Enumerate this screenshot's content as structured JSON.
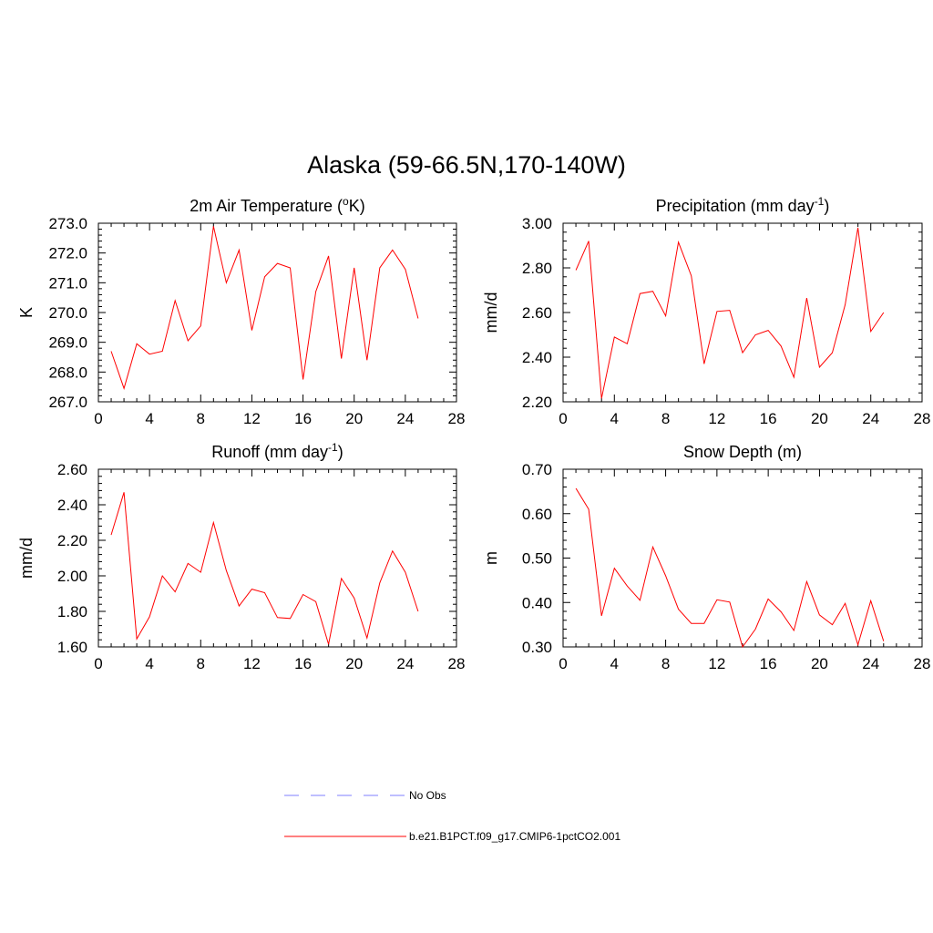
{
  "title": "Alaska (59-66.5N,170-140W)",
  "legend": {
    "entries": [
      {
        "label": "No Obs",
        "color": "#9999ff",
        "style": "dashed"
      },
      {
        "label": "b.e21.B1PCT.f09_g17.CMIP6-1pctCO2.001",
        "color": "#ff0000",
        "style": "solid"
      }
    ]
  },
  "chart_data": [
    {
      "type": "line",
      "title": "2m Air Temperature (",
      "title_sup": "o",
      "title_after": "K)",
      "xlabel": "",
      "ylabel": "K",
      "xlim": [
        0,
        28
      ],
      "ylim": [
        267.0,
        273.0
      ],
      "xticks": [
        0,
        4,
        8,
        12,
        16,
        20,
        24,
        28
      ],
      "yticks": [
        "267.0",
        "268.0",
        "269.0",
        "270.0",
        "271.0",
        "272.0",
        "273.0"
      ],
      "grid": false,
      "series": [
        {
          "color": "#ff0000",
          "x": [
            1,
            2,
            3,
            4,
            5,
            6,
            7,
            8,
            9,
            10,
            11,
            12,
            13,
            14,
            15,
            16,
            17,
            18,
            19,
            20,
            21,
            22,
            23,
            24,
            25
          ],
          "y": [
            268.7,
            267.45,
            268.95,
            268.6,
            268.7,
            270.4,
            269.05,
            269.55,
            272.9,
            271.0,
            272.1,
            269.4,
            271.2,
            271.65,
            271.5,
            267.75,
            270.7,
            271.9,
            268.45,
            271.5,
            268.4,
            271.5,
            272.1,
            271.45,
            269.8
          ]
        }
      ]
    },
    {
      "type": "line",
      "title": "Precipitation (mm day",
      "title_sup": "-1",
      "title_after": ")",
      "xlabel": "",
      "ylabel": "mm/d",
      "xlim": [
        0,
        28
      ],
      "ylim": [
        2.2,
        3.0
      ],
      "xticks": [
        0,
        4,
        8,
        12,
        16,
        20,
        24,
        28
      ],
      "yticks": [
        "2.20",
        "2.40",
        "2.60",
        "2.80",
        "3.00"
      ],
      "grid": false,
      "series": [
        {
          "color": "#ff0000",
          "x": [
            1,
            2,
            3,
            4,
            5,
            6,
            7,
            8,
            9,
            10,
            11,
            12,
            13,
            14,
            15,
            16,
            17,
            18,
            19,
            20,
            21,
            22,
            23,
            24,
            25
          ],
          "y": [
            2.79,
            2.92,
            2.215,
            2.49,
            2.46,
            2.685,
            2.695,
            2.585,
            2.915,
            2.765,
            2.37,
            2.605,
            2.61,
            2.42,
            2.5,
            2.52,
            2.45,
            2.31,
            2.665,
            2.355,
            2.42,
            2.635,
            2.98,
            2.515,
            2.6
          ]
        }
      ]
    },
    {
      "type": "line",
      "title": "Runoff (mm day",
      "title_sup": "-1",
      "title_after": ")",
      "xlabel": "",
      "ylabel": "mm/d",
      "xlim": [
        0,
        28
      ],
      "ylim": [
        1.6,
        2.6
      ],
      "xticks": [
        0,
        4,
        8,
        12,
        16,
        20,
        24,
        28
      ],
      "yticks": [
        "1.60",
        "1.80",
        "2.00",
        "2.20",
        "2.40",
        "2.60"
      ],
      "grid": false,
      "series": [
        {
          "color": "#ff0000",
          "x": [
            1,
            2,
            3,
            4,
            5,
            6,
            7,
            8,
            9,
            10,
            11,
            12,
            13,
            14,
            15,
            16,
            17,
            18,
            19,
            20,
            21,
            22,
            23,
            24,
            25
          ],
          "y": [
            2.23,
            2.47,
            1.645,
            1.77,
            2.0,
            1.91,
            2.07,
            2.02,
            2.3,
            2.03,
            1.83,
            1.925,
            1.905,
            1.765,
            1.76,
            1.895,
            1.855,
            1.615,
            1.985,
            1.875,
            1.65,
            1.96,
            2.14,
            2.02,
            1.8
          ]
        }
      ]
    },
    {
      "type": "line",
      "title": "Snow Depth (m)",
      "title_sup": "",
      "title_after": "",
      "xlabel": "",
      "ylabel": "m",
      "xlim": [
        0,
        28
      ],
      "ylim": [
        0.3,
        0.7
      ],
      "xticks": [
        0,
        4,
        8,
        12,
        16,
        20,
        24,
        28
      ],
      "yticks": [
        "0.30",
        "0.40",
        "0.50",
        "0.60",
        "0.70"
      ],
      "grid": false,
      "series": [
        {
          "color": "#ff0000",
          "x": [
            1,
            2,
            3,
            4,
            5,
            6,
            7,
            8,
            9,
            10,
            11,
            12,
            13,
            14,
            15,
            16,
            17,
            18,
            19,
            20,
            21,
            22,
            23,
            24,
            25
          ],
          "y": [
            0.657,
            0.61,
            0.37,
            0.477,
            0.437,
            0.405,
            0.525,
            0.46,
            0.385,
            0.353,
            0.353,
            0.406,
            0.401,
            0.3,
            0.34,
            0.408,
            0.379,
            0.337,
            0.447,
            0.372,
            0.35,
            0.398,
            0.305,
            0.404,
            0.313
          ]
        }
      ]
    }
  ]
}
